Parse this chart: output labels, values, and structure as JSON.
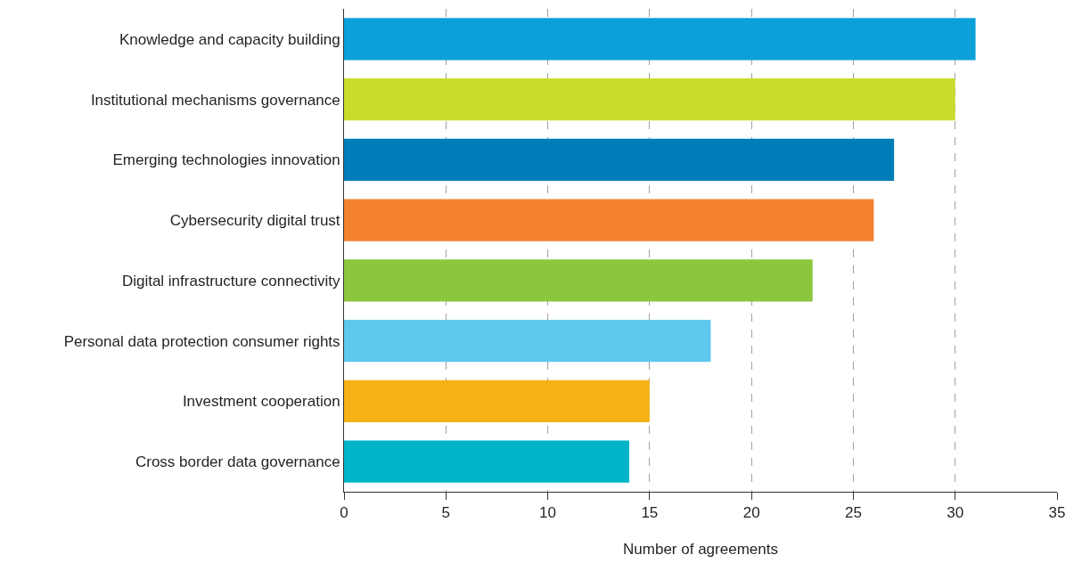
{
  "chart_data": {
    "type": "bar",
    "orientation": "horizontal",
    "xlabel": "Number of agreements",
    "categories": [
      "Knowledge and capacity building",
      "Institutional mechanisms governance",
      "Emerging technologies innovation",
      "Cybersecurity digital trust",
      "Digital infrastructure connectivity",
      "Personal data protection consumer rights",
      "Investment cooperation",
      "Cross border data governance"
    ],
    "values": [
      31,
      30,
      27,
      26,
      23,
      18,
      15,
      14
    ],
    "colors": [
      "#0ba0d8",
      "#c9dc2b",
      "#007db8",
      "#f3812e",
      "#8cc63f",
      "#5dc9ec",
      "#f7b218",
      "#00b4c8"
    ],
    "xlim": [
      0,
      35
    ],
    "xticks": [
      0,
      5,
      10,
      15,
      20,
      25,
      30,
      35
    ],
    "grid": "x"
  }
}
